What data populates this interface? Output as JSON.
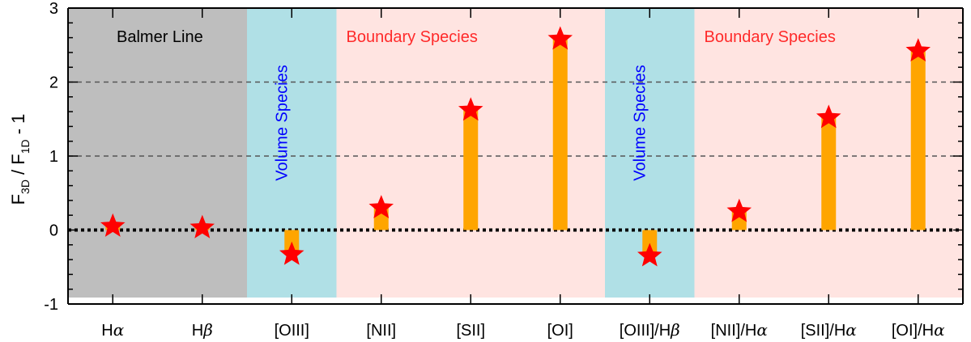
{
  "chart_data": {
    "type": "bar",
    "ylabel": {
      "main": "F",
      "sub1": "3D",
      "mid": " / F",
      "sub2": "1D",
      "end": " - 1"
    },
    "ylim": [
      -1,
      3
    ],
    "yticks": [
      -1,
      0,
      1,
      2,
      3
    ],
    "categories": [
      {
        "base": "H",
        "greek": "α"
      },
      {
        "base": "H",
        "greek": "β"
      },
      {
        "base": "[OIII]",
        "greek": ""
      },
      {
        "base": "[NII]",
        "greek": ""
      },
      {
        "base": "[SII]",
        "greek": ""
      },
      {
        "base": "[OI]",
        "greek": ""
      },
      {
        "base": "[OIII]/H",
        "greek": "β"
      },
      {
        "base": "[NII]/H",
        "greek": "α"
      },
      {
        "base": "[SII]/H",
        "greek": "α"
      },
      {
        "base": "[OI]/H",
        "greek": "α"
      }
    ],
    "values": [
      0.05,
      0.03,
      -0.33,
      0.3,
      1.62,
      2.58,
      -0.35,
      0.25,
      1.52,
      2.42
    ],
    "reference_lines": [
      {
        "y": 0,
        "style": "dotted-thick"
      },
      {
        "y": 1,
        "style": "dashed"
      },
      {
        "y": 2,
        "style": "dashed"
      }
    ],
    "regions": [
      {
        "label": "Balmer Line",
        "from_index": 0,
        "to_index": 1,
        "color": "#bebebe",
        "label_color": "#000000",
        "orientation": "horizontal"
      },
      {
        "label": "Volume Species",
        "from_index": 2,
        "to_index": 2,
        "color": "#b0e0e6",
        "label_color": "#0000ff",
        "orientation": "vertical"
      },
      {
        "label": "Boundary Species",
        "from_index": 3,
        "to_index": 5,
        "color": "#ffe4e1",
        "label_color": "#ff2a2a",
        "orientation": "horizontal"
      },
      {
        "label": "Volume Species",
        "from_index": 6,
        "to_index": 6,
        "color": "#b0e0e6",
        "label_color": "#0000ff",
        "orientation": "vertical"
      },
      {
        "label": "Boundary Species",
        "from_index": 7,
        "to_index": 9,
        "color": "#ffe4e1",
        "label_color": "#ff2a2a",
        "orientation": "horizontal"
      }
    ],
    "bar_color": "#ffa500",
    "marker": "star",
    "marker_color": "#ff0000",
    "grid": false,
    "legend": "none"
  }
}
